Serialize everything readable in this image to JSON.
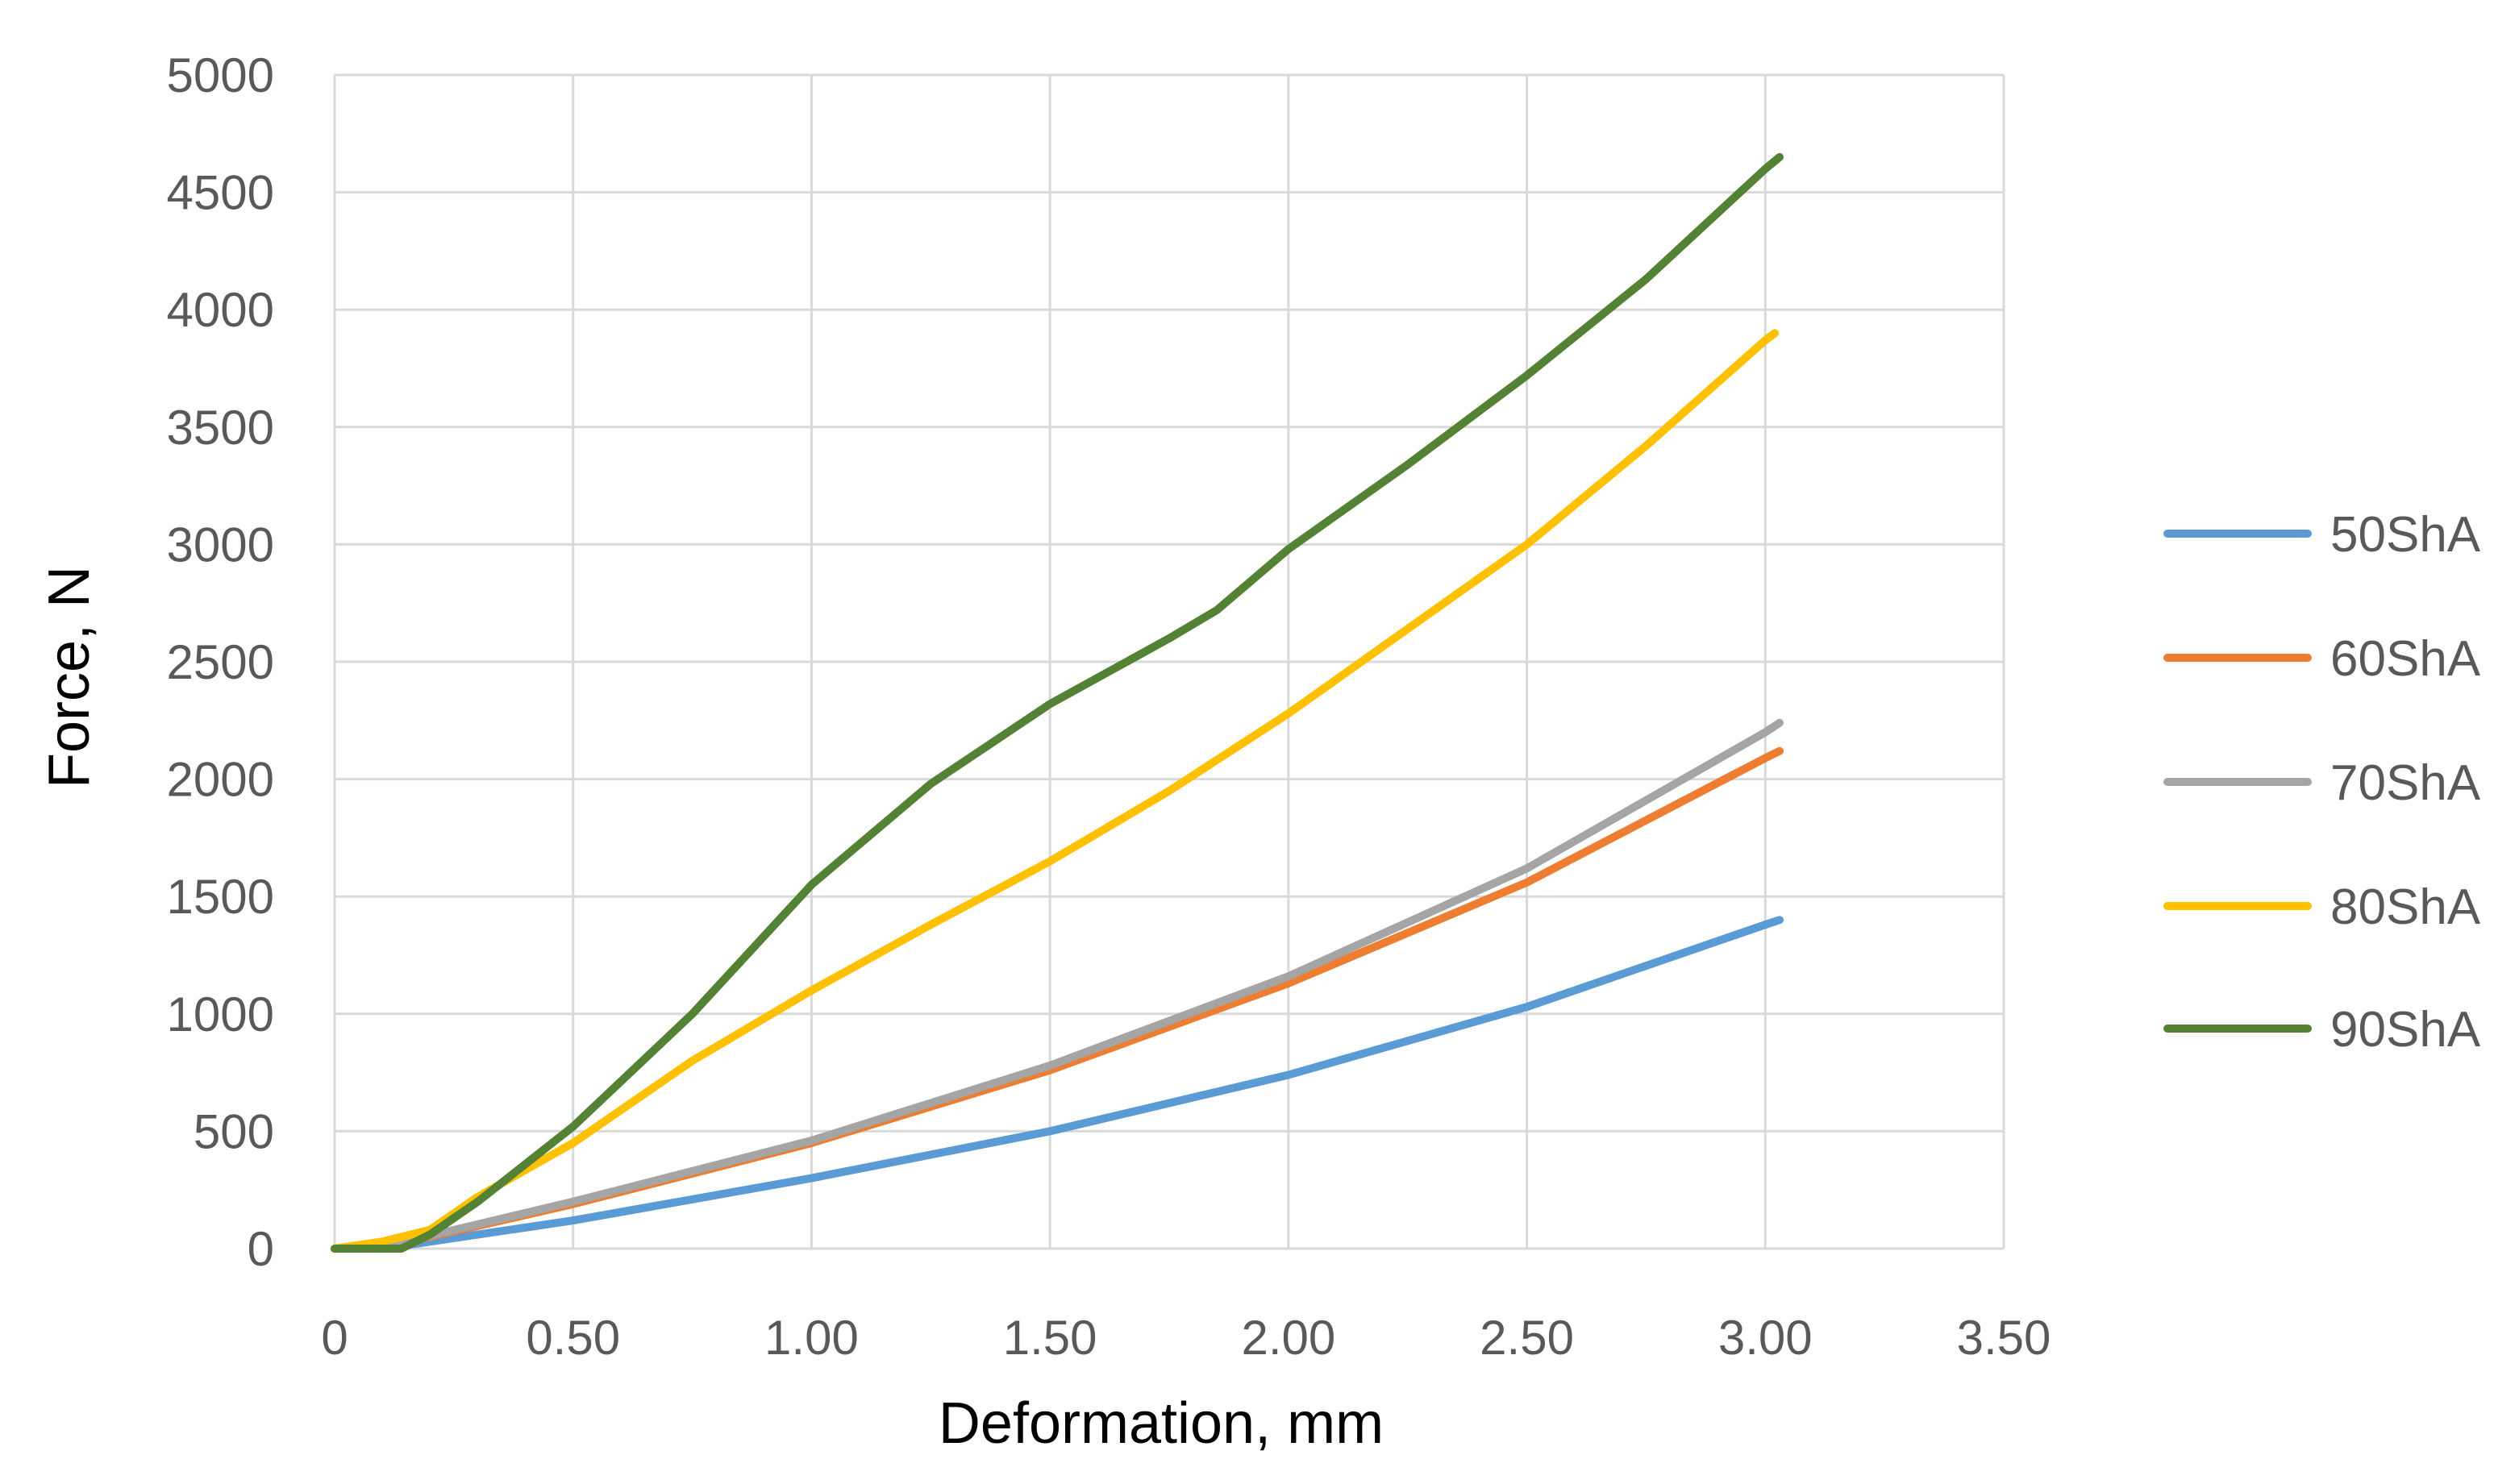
{
  "chart_data": {
    "type": "line",
    "title": "",
    "xlabel": "Deformation, mm",
    "ylabel": "Force, N",
    "xlim": [
      0,
      3.5
    ],
    "ylim": [
      0,
      5000
    ],
    "x_ticks": [
      0,
      0.5,
      1.0,
      1.5,
      2.0,
      2.5,
      3.0,
      3.5
    ],
    "x_tick_labels": [
      "0",
      "0.50",
      "1.00",
      "1.50",
      "2.00",
      "2.50",
      "3.00",
      "3.50"
    ],
    "y_ticks": [
      0,
      500,
      1000,
      1500,
      2000,
      2500,
      3000,
      3500,
      4000,
      4500,
      5000
    ],
    "y_tick_labels": [
      "0",
      "500",
      "1000",
      "1500",
      "2000",
      "2500",
      "3000",
      "3500",
      "4000",
      "4500",
      "5000"
    ],
    "grid": true,
    "legend_position": "right",
    "series": [
      {
        "name": "50ShA",
        "color": "#5B9BD5",
        "x": [
          0,
          0.1,
          0.2,
          0.5,
          1.0,
          1.5,
          2.0,
          2.5,
          3.0,
          3.03
        ],
        "y": [
          0,
          0,
          30,
          120,
          300,
          500,
          740,
          1030,
          1380,
          1400
        ]
      },
      {
        "name": "60ShA",
        "color": "#ED7D31",
        "x": [
          0,
          0.1,
          0.2,
          0.5,
          1.0,
          1.5,
          2.0,
          2.5,
          3.0,
          3.03
        ],
        "y": [
          0,
          20,
          50,
          190,
          450,
          760,
          1130,
          1560,
          2090,
          2120
        ]
      },
      {
        "name": "70ShA",
        "color": "#A5A5A5",
        "x": [
          0,
          0.1,
          0.2,
          0.5,
          1.0,
          1.5,
          2.0,
          2.5,
          3.0,
          3.03
        ],
        "y": [
          0,
          20,
          55,
          200,
          460,
          780,
          1160,
          1620,
          2200,
          2240
        ]
      },
      {
        "name": "80ShA",
        "color": "#FFC000",
        "x": [
          0,
          0.1,
          0.2,
          0.3,
          0.5,
          0.75,
          1.0,
          1.25,
          1.5,
          1.75,
          2.0,
          2.25,
          2.5,
          2.75,
          3.0,
          3.02
        ],
        "y": [
          0,
          30,
          80,
          220,
          450,
          800,
          1100,
          1380,
          1650,
          1950,
          2280,
          2640,
          3000,
          3420,
          3870,
          3900
        ]
      },
      {
        "name": "90ShA",
        "color": "#548235",
        "x": [
          0,
          0.14,
          0.2,
          0.3,
          0.5,
          0.75,
          1.0,
          1.25,
          1.5,
          1.75,
          1.85,
          2.0,
          2.25,
          2.5,
          2.75,
          3.0,
          3.03
        ],
        "y": [
          0,
          0,
          60,
          200,
          520,
          1000,
          1550,
          1980,
          2320,
          2600,
          2720,
          2980,
          3340,
          3720,
          4130,
          4600,
          4650
        ]
      }
    ]
  }
}
